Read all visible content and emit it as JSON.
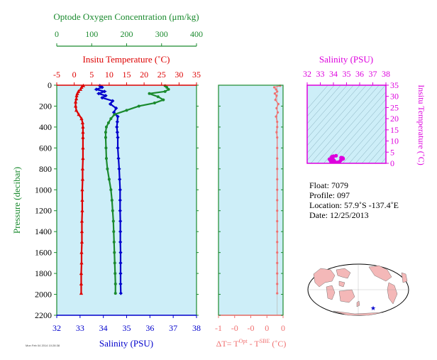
{
  "chart_data": [
    {
      "type": "line",
      "panel": "main-profile",
      "ylabel": "Pressure (decibar)",
      "y_ticks": [
        "0",
        "200",
        "400",
        "600",
        "800",
        "1000",
        "1200",
        "1400",
        "1600",
        "1800",
        "2000",
        "2200"
      ],
      "ylim": [
        2200,
        0
      ],
      "axes": {
        "oxygen": {
          "label": "Optode Oxygen Concentration (μm/kg)",
          "ticks": [
            "0",
            "100",
            "200",
            "300",
            "400"
          ],
          "range": [
            0,
            400
          ],
          "color": "#1a8a2e"
        },
        "temperature": {
          "label": "Insitu Temperature (˚C)",
          "ticks": [
            "-5",
            "0",
            "5",
            "10",
            "15",
            "20",
            "25",
            "30",
            "35"
          ],
          "range": [
            -5,
            35
          ],
          "color": "#dd0000"
        },
        "salinity": {
          "label": "Salinity (PSU)",
          "ticks": [
            "32",
            "33",
            "34",
            "35",
            "36",
            "37",
            "38"
          ],
          "range": [
            32,
            38
          ],
          "color": "#0000cc"
        }
      },
      "series": [
        {
          "axis": "temperature",
          "color": "#dd0000",
          "marker": "triangle",
          "points": [
            [
              2.6,
              5
            ],
            [
              2.1,
              20
            ],
            [
              1.8,
              40
            ],
            [
              1.2,
              60
            ],
            [
              0.9,
              80
            ],
            [
              0.7,
              100
            ],
            [
              0.6,
              130
            ],
            [
              0.4,
              160
            ],
            [
              0.4,
              200
            ],
            [
              0.6,
              240
            ],
            [
              1.3,
              280
            ],
            [
              2.1,
              320
            ],
            [
              2.4,
              360
            ],
            [
              2.5,
              400
            ],
            [
              2.5,
              450
            ],
            [
              2.5,
              500
            ],
            [
              2.5,
              600
            ],
            [
              2.5,
              700
            ],
            [
              2.4,
              800
            ],
            [
              2.4,
              900
            ],
            [
              2.3,
              1000
            ],
            [
              2.3,
              1100
            ],
            [
              2.3,
              1200
            ],
            [
              2.2,
              1300
            ],
            [
              2.2,
              1400
            ],
            [
              2.2,
              1500
            ],
            [
              2.1,
              1600
            ],
            [
              2.1,
              1700
            ],
            [
              2.0,
              1800
            ],
            [
              2.0,
              1900
            ],
            [
              2.0,
              1990
            ]
          ]
        },
        {
          "axis": "salinity",
          "color": "#0000cc",
          "marker": "diamond",
          "points": [
            [
              33.85,
              5
            ],
            [
              33.95,
              20
            ],
            [
              33.7,
              40
            ],
            [
              34.05,
              60
            ],
            [
              33.8,
              80
            ],
            [
              34.1,
              100
            ],
            [
              33.95,
              120
            ],
            [
              34.4,
              150
            ],
            [
              34.3,
              180
            ],
            [
              34.55,
              220
            ],
            [
              34.45,
              260
            ],
            [
              34.62,
              300
            ],
            [
              34.6,
              350
            ],
            [
              34.58,
              400
            ],
            [
              34.6,
              450
            ],
            [
              34.62,
              500
            ],
            [
              34.62,
              600
            ],
            [
              34.65,
              700
            ],
            [
              34.68,
              800
            ],
            [
              34.7,
              900
            ],
            [
              34.72,
              1000
            ],
            [
              34.72,
              1100
            ],
            [
              34.72,
              1200
            ],
            [
              34.73,
              1300
            ],
            [
              34.73,
              1400
            ],
            [
              34.73,
              1500
            ],
            [
              34.74,
              1600
            ],
            [
              34.74,
              1700
            ],
            [
              34.74,
              1800
            ],
            [
              34.74,
              1900
            ],
            [
              34.75,
              1990
            ]
          ]
        },
        {
          "axis": "oxygen",
          "color": "#1a8a2e",
          "marker": "circle",
          "points": [
            [
              310,
              5
            ],
            [
              315,
              20
            ],
            [
              320,
              40
            ],
            [
              310,
              60
            ],
            [
              265,
              80
            ],
            [
              290,
              110
            ],
            [
              305,
              140
            ],
            [
              280,
              170
            ],
            [
              235,
              200
            ],
            [
              200,
              240
            ],
            [
              165,
              280
            ],
            [
              155,
              320
            ],
            [
              148,
              360
            ],
            [
              142,
              400
            ],
            [
              140,
              450
            ],
            [
              140,
              500
            ],
            [
              141,
              600
            ],
            [
              142,
              700
            ],
            [
              145,
              800
            ],
            [
              150,
              900
            ],
            [
              155,
              1000
            ],
            [
              158,
              1100
            ],
            [
              160,
              1200
            ],
            [
              162,
              1300
            ],
            [
              163,
              1400
            ],
            [
              164,
              1500
            ],
            [
              165,
              1600
            ],
            [
              166,
              1700
            ],
            [
              167,
              1800
            ],
            [
              168,
              1900
            ],
            [
              168,
              1990
            ]
          ]
        }
      ]
    },
    {
      "type": "line",
      "panel": "delta-t",
      "xlabel": "ΔT= T",
      "xlabel_sup1": "Opt",
      "xlabel_mid": " - T",
      "xlabel_sup2": "SBE",
      "xlabel_unit": " (˚C)",
      "x_ticks": [
        "-1",
        "-0",
        "-0",
        "0",
        "0"
      ],
      "xlim": [
        -1,
        0.1
      ],
      "ylim": [
        2200,
        0
      ],
      "series": [
        {
          "color": "#f07070",
          "marker": "circle",
          "points": [
            [
              0.05,
              5
            ],
            [
              -0.05,
              20
            ],
            [
              -0.02,
              40
            ],
            [
              0.0,
              60
            ],
            [
              -0.04,
              80
            ],
            [
              -0.01,
              100
            ],
            [
              -0.03,
              140
            ],
            [
              0.02,
              180
            ],
            [
              -0.01,
              220
            ],
            [
              0.01,
              260
            ],
            [
              -0.02,
              300
            ],
            [
              0.0,
              350
            ],
            [
              0.0,
              400
            ],
            [
              -0.01,
              450
            ],
            [
              0.0,
              500
            ],
            [
              0.0,
              600
            ],
            [
              0.0,
              700
            ],
            [
              0.0,
              800
            ],
            [
              0.0,
              900
            ],
            [
              0.0,
              1000
            ],
            [
              0.0,
              1100
            ],
            [
              0.0,
              1200
            ],
            [
              0.0,
              1300
            ],
            [
              0.0,
              1400
            ],
            [
              0.0,
              1500
            ],
            [
              0.0,
              1600
            ],
            [
              0.0,
              1700
            ],
            [
              0.0,
              1800
            ],
            [
              0.0,
              1900
            ],
            [
              0.0,
              1990
            ]
          ]
        }
      ]
    },
    {
      "type": "scatter",
      "panel": "ts-diagram",
      "title": "Salinity (PSU)",
      "ylabel": "Insitu Temperature (˚C)",
      "x_ticks": [
        "32",
        "33",
        "34",
        "35",
        "36",
        "37",
        "38"
      ],
      "xlim": [
        32,
        38
      ],
      "y_ticks": [
        "0",
        "5",
        "10",
        "15",
        "20",
        "25",
        "30",
        "35"
      ],
      "ylim": [
        0,
        35
      ],
      "color": "#dd00dd",
      "points": [
        [
          34.7,
          2.0
        ],
        [
          34.72,
          2.1
        ],
        [
          34.72,
          2.3
        ],
        [
          34.68,
          2.4
        ],
        [
          34.62,
          2.5
        ],
        [
          34.6,
          2.5
        ],
        [
          34.58,
          2.5
        ],
        [
          34.6,
          2.4
        ],
        [
          34.55,
          1.3
        ],
        [
          34.45,
          0.6
        ],
        [
          34.3,
          0.4
        ],
        [
          34.4,
          0.4
        ],
        [
          33.95,
          0.6
        ],
        [
          34.1,
          0.7
        ],
        [
          33.8,
          0.9
        ],
        [
          34.05,
          1.2
        ],
        [
          33.7,
          1.8
        ],
        [
          33.95,
          2.1
        ],
        [
          33.85,
          2.6
        ],
        [
          34.62,
          2.2
        ],
        [
          34.74,
          2.0
        ],
        [
          34.0,
          3.2
        ],
        [
          34.2,
          3.4
        ],
        [
          33.9,
          3.0
        ]
      ]
    }
  ],
  "float_info": {
    "float": "Float:  7079",
    "profile": "Profile:  097",
    "location": "Location:  57.9˚S  -137.4˚E",
    "date": "Date:  12/25/2013"
  },
  "map": {
    "marker_lon": -137.4,
    "marker_lat": -57.9,
    "marker_color": "#0000cc",
    "land_color": "#f4b8b8",
    "ocean_color": "#ffffff"
  },
  "footer": {
    "stamp": "Mon Feb 04 2014 10:28:38"
  }
}
